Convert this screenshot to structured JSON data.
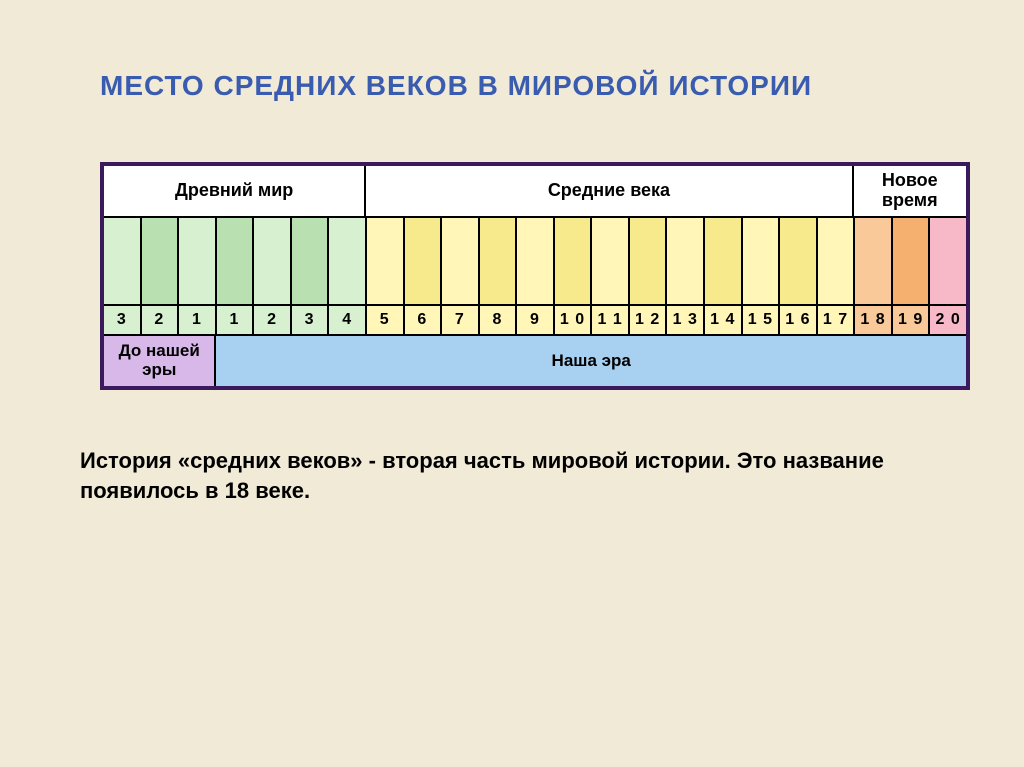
{
  "title": "МЕСТО СРЕДНИХ ВЕКОВ В МИРОВОЙ ИСТОРИИ",
  "periods": [
    {
      "label": "Древний мир",
      "span": 7
    },
    {
      "label": "Средние века",
      "span": 13
    },
    {
      "label": "Новое время",
      "span": 3
    }
  ],
  "total_cells": 23,
  "colors": {
    "ancient_light": "#d6f0d0",
    "ancient_dark": "#b8e0b0",
    "medieval_light": "#fff6b8",
    "medieval_dark": "#f7ea8c",
    "modern_light": "#f9c99a",
    "modern_dark": "#f5b070",
    "modern_pink": "#f7b8c8",
    "era_bc": "#d8b8e8",
    "era_ad": "#a8d0f0",
    "border": "#000000",
    "frame": "#3a1a5c",
    "title": "#3a5cb0",
    "background": "#f0ead6"
  },
  "century_cells": [
    {
      "color": "#d6f0d0"
    },
    {
      "color": "#b8e0b0"
    },
    {
      "color": "#d6f0d0"
    },
    {
      "color": "#b8e0b0"
    },
    {
      "color": "#d6f0d0"
    },
    {
      "color": "#b8e0b0"
    },
    {
      "color": "#d6f0d0"
    },
    {
      "color": "#fff6b8"
    },
    {
      "color": "#f7ea8c"
    },
    {
      "color": "#fff6b8"
    },
    {
      "color": "#f7ea8c"
    },
    {
      "color": "#fff6b8"
    },
    {
      "color": "#f7ea8c"
    },
    {
      "color": "#fff6b8"
    },
    {
      "color": "#f7ea8c"
    },
    {
      "color": "#fff6b8"
    },
    {
      "color": "#f7ea8c"
    },
    {
      "color": "#fff6b8"
    },
    {
      "color": "#f7ea8c"
    },
    {
      "color": "#fff6b8"
    },
    {
      "color": "#f9c99a"
    },
    {
      "color": "#f5b070"
    },
    {
      "color": "#f7b8c8"
    }
  ],
  "century_numbers": [
    {
      "label": "3",
      "color": "#d6f0d0"
    },
    {
      "label": "2",
      "color": "#d6f0d0"
    },
    {
      "label": "1",
      "color": "#d6f0d0"
    },
    {
      "label": "1",
      "color": "#d6f0d0"
    },
    {
      "label": "2",
      "color": "#d6f0d0"
    },
    {
      "label": "3",
      "color": "#d6f0d0"
    },
    {
      "label": "4",
      "color": "#d6f0d0"
    },
    {
      "label": "5",
      "color": "#fff6b8"
    },
    {
      "label": "6",
      "color": "#fff6b8"
    },
    {
      "label": "7",
      "color": "#fff6b8"
    },
    {
      "label": "8",
      "color": "#fff6b8"
    },
    {
      "label": "9",
      "color": "#fff6b8"
    },
    {
      "label": "1 0",
      "color": "#fff6b8"
    },
    {
      "label": "1 1",
      "color": "#fff6b8"
    },
    {
      "label": "1 2",
      "color": "#fff6b8"
    },
    {
      "label": "1 3",
      "color": "#fff6b8"
    },
    {
      "label": "1 4",
      "color": "#fff6b8"
    },
    {
      "label": "1 5",
      "color": "#fff6b8"
    },
    {
      "label": "1 6",
      "color": "#fff6b8"
    },
    {
      "label": "1 7",
      "color": "#fff6b8"
    },
    {
      "label": "1 8",
      "color": "#f9c99a"
    },
    {
      "label": "1 9",
      "color": "#f9c99a"
    },
    {
      "label": "2 0",
      "color": "#f7b8c8"
    }
  ],
  "eras": [
    {
      "label": "До нашей эры",
      "span": 3,
      "color": "#d8b8e8"
    },
    {
      "label": "Наша эра",
      "span": 20,
      "color": "#a8d0f0"
    }
  ],
  "caption": "История «средних веков» - вторая часть мировой истории. Это название появилось в 18 веке.",
  "layout": {
    "cell_height_periods": 52,
    "cell_height_colors": 88,
    "cell_height_numbers": 30,
    "cell_height_era": 50,
    "title_fontsize": 28,
    "label_fontsize": 18,
    "number_fontsize": 16,
    "caption_fontsize": 22
  }
}
